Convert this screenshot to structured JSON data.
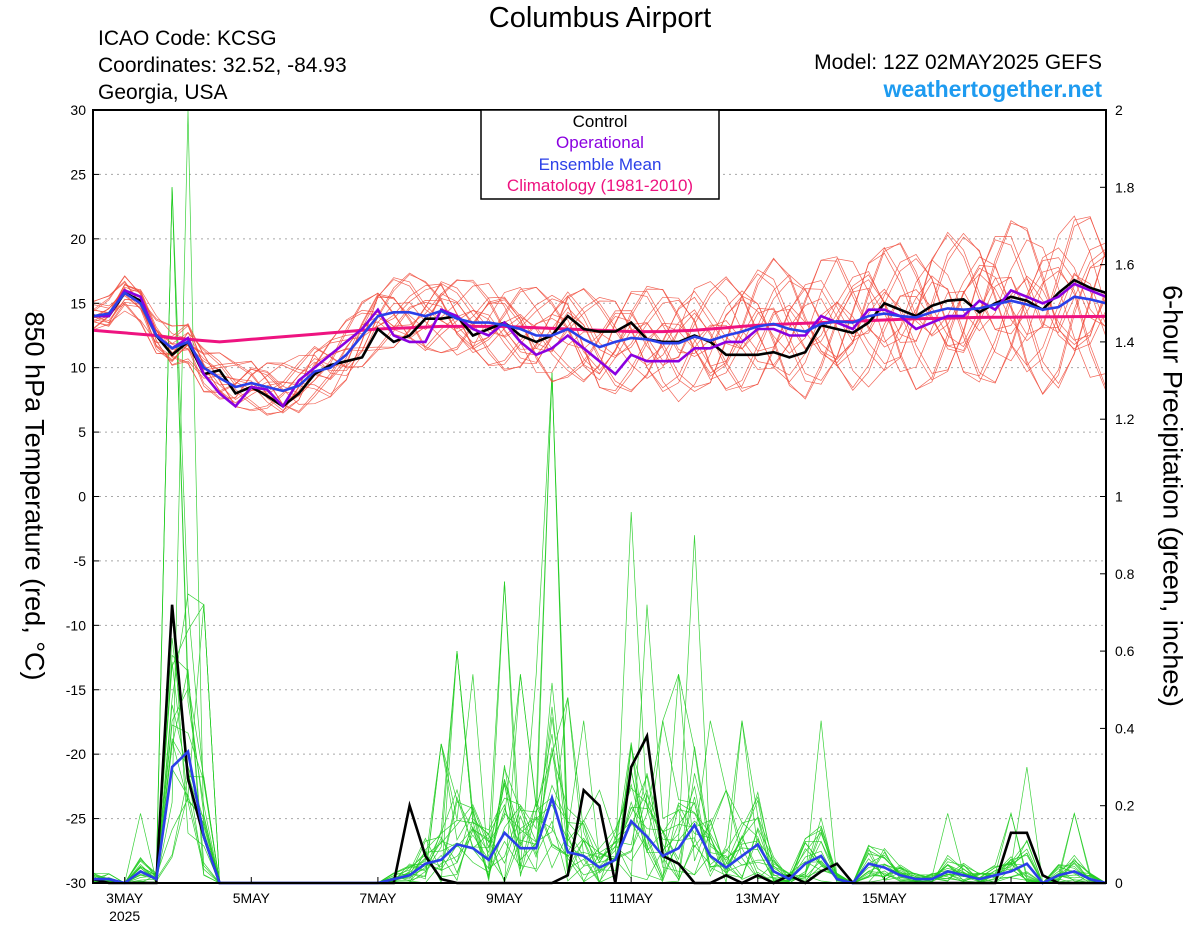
{
  "header": {
    "title": "Columbus Airport",
    "icao": "ICAO Code: KCSG",
    "coordinates": "Coordinates: 32.52, -84.93",
    "region": "Georgia, USA",
    "model": "Model: 12Z 02MAY2025 GEFS",
    "site": "weathertogether.net"
  },
  "colors": {
    "control": "#000000",
    "operational": "#8a00e0",
    "ensemble_mean": "#2a3fe8",
    "climatology": "#ee1380",
    "members_temp": "#f04a3a",
    "members_precip": "#22cc22",
    "site": "#1e9bf0"
  },
  "chart_data": {
    "type": "line",
    "ylabel_left": "850 hPa Temperature (red, °C)",
    "ylabel_right": "6-hour Precipitation (green, inches)",
    "ylim_left": [
      -30,
      30
    ],
    "ylim_right": [
      0,
      2
    ],
    "yticks_left": [
      "30",
      "25",
      "20",
      "15",
      "10",
      "5",
      "0",
      "-5",
      "-10",
      "-15",
      "-20",
      "-25",
      "-30"
    ],
    "yticks_right": [
      "2",
      "1.8",
      "1.6",
      "1.4",
      "1.2",
      "1",
      "0.8",
      "0.6",
      "0.4",
      "0.2",
      "0"
    ],
    "xlim_days": [
      2.5,
      18.5
    ],
    "x_ticks": [
      {
        "day": 3,
        "label": "3MAY",
        "sub": "2025"
      },
      {
        "day": 5,
        "label": "5MAY",
        "sub": ""
      },
      {
        "day": 7,
        "label": "7MAY",
        "sub": ""
      },
      {
        "day": 9,
        "label": "9MAY",
        "sub": ""
      },
      {
        "day": 11,
        "label": "11MAY",
        "sub": ""
      },
      {
        "day": 13,
        "label": "13MAY",
        "sub": ""
      },
      {
        "day": 15,
        "label": "15MAY",
        "sub": ""
      },
      {
        "day": 17,
        "label": "17MAY",
        "sub": ""
      }
    ],
    "grid": true,
    "legend": {
      "placement": "top-center",
      "entries": [
        {
          "label": "Control",
          "color": "#000000"
        },
        {
          "label": "Operational",
          "color": "#8a00e0"
        },
        {
          "label": "Ensemble Mean",
          "color": "#2a3fe8"
        },
        {
          "label": "Climatology (1981-2010)",
          "color": "#ee1380"
        }
      ]
    },
    "temperature": {
      "x_days": [
        2.5,
        2.75,
        3.0,
        3.25,
        3.5,
        3.75,
        4.0,
        4.25,
        4.5,
        4.75,
        5.0,
        5.25,
        5.5,
        5.75,
        6.0,
        6.25,
        6.5,
        6.75,
        7.0,
        7.25,
        7.5,
        7.75,
        8.0,
        8.25,
        8.5,
        8.75,
        9.0,
        9.25,
        9.5,
        9.75,
        10.0,
        10.25,
        10.5,
        10.75,
        11.0,
        11.25,
        11.5,
        11.75,
        12.0,
        12.25,
        12.5,
        12.75,
        13.0,
        13.25,
        13.5,
        13.75,
        14.0,
        14.25,
        14.5,
        14.75,
        15.0,
        15.25,
        15.5,
        15.75,
        16.0,
        16.25,
        16.5,
        16.75,
        17.0,
        17.25,
        17.5,
        17.75,
        18.0,
        18.25,
        18.5
      ],
      "series": [
        {
          "name": "Control",
          "values": [
            14.0,
            14.0,
            15.8,
            15.2,
            12.5,
            11.0,
            12.0,
            9.5,
            9.8,
            8.0,
            8.5,
            7.8,
            7.0,
            8.0,
            9.5,
            10.2,
            10.5,
            10.8,
            13.0,
            12.0,
            12.5,
            13.8,
            13.8,
            14.0,
            12.5,
            13.0,
            13.5,
            12.5,
            12.0,
            12.5,
            14.0,
            13.0,
            12.8,
            12.8,
            13.5,
            12.2,
            12.0,
            12.0,
            12.5,
            12.0,
            11.0,
            11.0,
            11.0,
            11.2,
            10.8,
            11.2,
            13.3,
            13.0,
            12.7,
            13.5,
            15.0,
            14.5,
            14.0,
            14.8,
            15.2,
            15.3,
            14.3,
            15.0,
            15.5,
            15.2,
            14.5,
            15.8,
            16.8,
            16.2,
            15.8
          ]
        },
        {
          "name": "Operational",
          "values": [
            14.0,
            14.0,
            16.0,
            15.5,
            12.5,
            11.5,
            12.3,
            9.5,
            8.0,
            7.0,
            8.5,
            8.3,
            7.0,
            9.0,
            10.0,
            11.0,
            12.0,
            13.0,
            14.5,
            12.5,
            12.0,
            12.0,
            14.5,
            14.0,
            13.0,
            12.5,
            13.5,
            12.0,
            11.0,
            11.5,
            12.5,
            11.5,
            10.5,
            9.5,
            11.0,
            10.5,
            10.5,
            10.5,
            11.5,
            11.5,
            12.0,
            12.0,
            13.0,
            13.0,
            12.5,
            12.5,
            14.0,
            13.5,
            13.0,
            14.5,
            14.5,
            14.0,
            13.0,
            13.5,
            14.0,
            14.0,
            15.2,
            14.5,
            16.0,
            15.5,
            15.0,
            15.5,
            16.5,
            16.0,
            15.5
          ]
        },
        {
          "name": "Ensemble Mean",
          "values": [
            14.0,
            14.2,
            15.8,
            15.0,
            12.5,
            11.5,
            12.0,
            10.0,
            9.2,
            8.5,
            8.8,
            8.5,
            8.2,
            8.6,
            9.7,
            10.0,
            11.0,
            12.5,
            14.0,
            14.3,
            14.3,
            14.0,
            14.4,
            13.8,
            13.5,
            13.5,
            13.3,
            13.0,
            12.5,
            12.5,
            13.0,
            12.2,
            11.6,
            12.0,
            12.3,
            12.2,
            11.9,
            11.9,
            12.4,
            12.1,
            12.5,
            12.8,
            13.2,
            13.4,
            13.0,
            12.8,
            13.4,
            13.6,
            13.5,
            14.0,
            14.2,
            14.0,
            13.9,
            14.3,
            14.6,
            14.5,
            14.6,
            14.9,
            15.2,
            14.9,
            14.5,
            14.7,
            15.5,
            15.3,
            15.0
          ]
        },
        {
          "name": "Climatology (1981-2010)",
          "values": [
            12.9,
            12.8,
            12.7,
            12.6,
            12.5,
            12.3,
            12.2,
            12.1,
            12.0,
            12.1,
            12.2,
            12.3,
            12.4,
            12.5,
            12.6,
            12.7,
            12.8,
            12.9,
            13.0,
            13.05,
            13.1,
            13.15,
            13.2,
            13.2,
            13.2,
            13.2,
            13.2,
            13.15,
            13.1,
            13.05,
            13.0,
            12.95,
            12.9,
            12.85,
            12.8,
            12.8,
            12.8,
            12.85,
            12.9,
            13.0,
            13.1,
            13.2,
            13.3,
            13.35,
            13.4,
            13.45,
            13.5,
            13.55,
            13.6,
            13.65,
            13.7,
            13.75,
            13.8,
            13.82,
            13.85,
            13.87,
            13.9,
            13.91,
            13.92,
            13.93,
            13.94,
            13.95,
            13.96,
            13.97,
            13.98
          ]
        }
      ]
    },
    "precipitation": {
      "x_days": [
        2.5,
        2.75,
        3.0,
        3.25,
        3.5,
        3.75,
        4.0,
        4.25,
        4.5,
        4.75,
        5.0,
        5.25,
        5.5,
        5.75,
        6.0,
        6.25,
        6.5,
        6.75,
        7.0,
        7.25,
        7.5,
        7.75,
        8.0,
        8.25,
        8.5,
        8.75,
        9.0,
        9.25,
        9.5,
        9.75,
        10.0,
        10.25,
        10.5,
        10.75,
        11.0,
        11.25,
        11.5,
        11.75,
        12.0,
        12.25,
        12.5,
        12.75,
        13.0,
        13.25,
        13.5,
        13.75,
        14.0,
        14.25,
        14.5,
        14.75,
        15.0,
        15.25,
        15.5,
        15.75,
        16.0,
        16.25,
        16.5,
        16.75,
        17.0,
        17.25,
        17.5,
        17.75,
        18.0,
        18.25,
        18.5
      ],
      "series": [
        {
          "name": "Control",
          "values": [
            0.01,
            0.0,
            0.0,
            0.0,
            0.0,
            0.72,
            0.27,
            0.12,
            0.0,
            0.0,
            0.0,
            0.0,
            0.0,
            0.0,
            0.0,
            0.0,
            0.0,
            0.0,
            0.0,
            0.0,
            0.2,
            0.07,
            0.01,
            0.0,
            0.0,
            0.0,
            0.0,
            0.0,
            0.0,
            0.0,
            0.02,
            0.24,
            0.2,
            0.0,
            0.3,
            0.38,
            0.07,
            0.05,
            0.0,
            0.0,
            0.02,
            0.0,
            0.02,
            0.0,
            0.02,
            0.0,
            0.03,
            0.05,
            0.0,
            0.0,
            0.0,
            0.0,
            0.0,
            0.0,
            0.0,
            0.0,
            0.0,
            0.0,
            0.13,
            0.13,
            0.02,
            0.0,
            0.0,
            0.0,
            0.0
          ]
        },
        {
          "name": "Ensemble Mean",
          "values": [
            0.01,
            0.01,
            0.0,
            0.03,
            0.01,
            0.3,
            0.34,
            0.12,
            0.0,
            0.0,
            0.0,
            0.0,
            0.0,
            0.0,
            0.0,
            0.0,
            0.0,
            0.0,
            0.0,
            0.01,
            0.02,
            0.05,
            0.06,
            0.1,
            0.09,
            0.06,
            0.13,
            0.09,
            0.09,
            0.22,
            0.08,
            0.07,
            0.04,
            0.06,
            0.16,
            0.12,
            0.07,
            0.09,
            0.15,
            0.07,
            0.04,
            0.07,
            0.1,
            0.03,
            0.01,
            0.05,
            0.07,
            0.01,
            0.0,
            0.05,
            0.04,
            0.02,
            0.01,
            0.01,
            0.03,
            0.02,
            0.01,
            0.02,
            0.03,
            0.05,
            0.0,
            0.02,
            0.03,
            0.01,
            0.0
          ]
        }
      ]
    }
  }
}
